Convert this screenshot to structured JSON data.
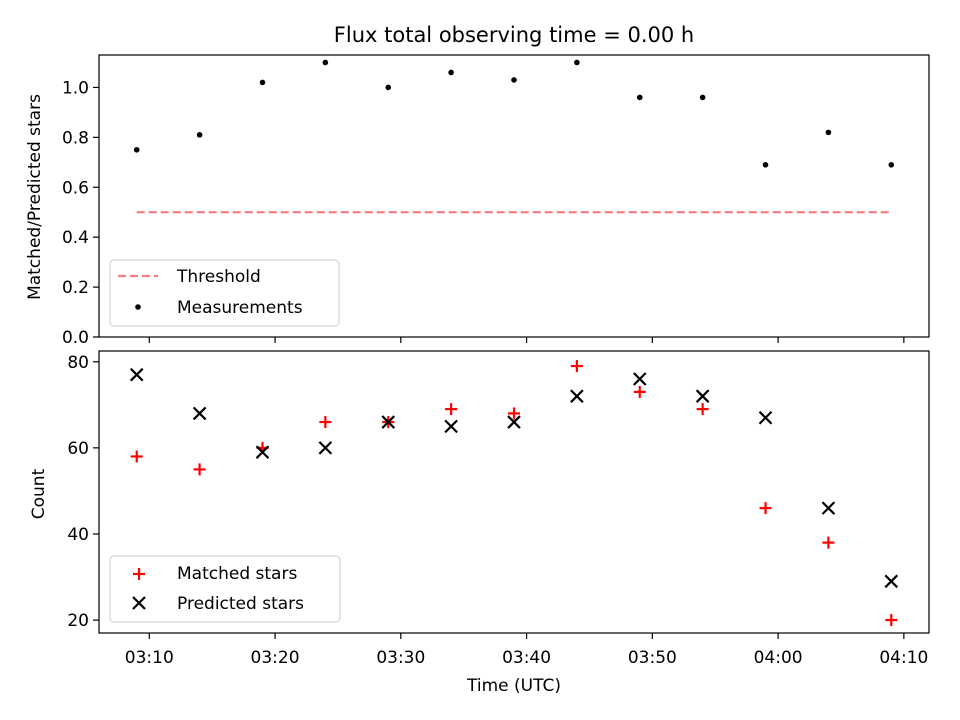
{
  "chart_data": [
    {
      "type": "scatter",
      "title": "Flux total observing time = 0.00 h",
      "ylabel": "Matched/Predicted stars",
      "xlabel": "",
      "ylim": [
        0,
        1.13
      ],
      "xlim": [
        "03:06",
        "04:12"
      ],
      "x_ticks": [
        "03:10",
        "03:20",
        "03:30",
        "03:40",
        "03:50",
        "04:00",
        "04:10"
      ],
      "show_x_tick_labels": false,
      "y_ticks": [
        0.0,
        0.2,
        0.4,
        0.6,
        0.8,
        1.0
      ],
      "y_tick_labels": [
        "0.0",
        "0.2",
        "0.4",
        "0.6",
        "0.8",
        "1.0"
      ],
      "grid": false,
      "legend": "lower-left",
      "x": [
        "03:09",
        "03:14",
        "03:19",
        "03:24",
        "03:29",
        "03:34",
        "03:39",
        "03:44",
        "03:49",
        "03:54",
        "03:59",
        "04:04",
        "04:09"
      ],
      "series": [
        {
          "name": "Threshold",
          "kind": "line-dashed",
          "color": "#f08080",
          "x": [
            "03:09",
            "04:09"
          ],
          "values": [
            0.5,
            0.5
          ]
        },
        {
          "name": "Measurements",
          "kind": "dot",
          "color": "#000000",
          "values": [
            0.75,
            0.81,
            1.02,
            1.1,
            1.0,
            1.06,
            1.03,
            1.1,
            0.96,
            0.96,
            0.69,
            0.82,
            0.69
          ]
        }
      ]
    },
    {
      "type": "scatter",
      "title": "",
      "ylabel": "Count",
      "xlabel": "Time (UTC)",
      "ylim": [
        17,
        82.5
      ],
      "xlim": [
        "03:06",
        "04:12"
      ],
      "x_ticks": [
        "03:10",
        "03:20",
        "03:30",
        "03:40",
        "03:50",
        "04:00",
        "04:10"
      ],
      "show_x_tick_labels": true,
      "y_ticks": [
        20,
        40,
        60,
        80
      ],
      "y_tick_labels": [
        "20",
        "40",
        "60",
        "80"
      ],
      "grid": false,
      "legend": "lower-left",
      "x": [
        "03:09",
        "03:14",
        "03:19",
        "03:24",
        "03:29",
        "03:34",
        "03:39",
        "03:44",
        "03:49",
        "03:54",
        "03:59",
        "04:04",
        "04:09"
      ],
      "series": [
        {
          "name": "Matched stars",
          "kind": "plus",
          "color": "#ff0000",
          "values": [
            58,
            55,
            60,
            66,
            66,
            69,
            68,
            79,
            73,
            69,
            46,
            38,
            20
          ]
        },
        {
          "name": "Predicted stars",
          "kind": "cross",
          "color": "#000000",
          "values": [
            77,
            68,
            59,
            60,
            66,
            65,
            66,
            72,
            76,
            72,
            67,
            46,
            29
          ]
        }
      ]
    }
  ]
}
